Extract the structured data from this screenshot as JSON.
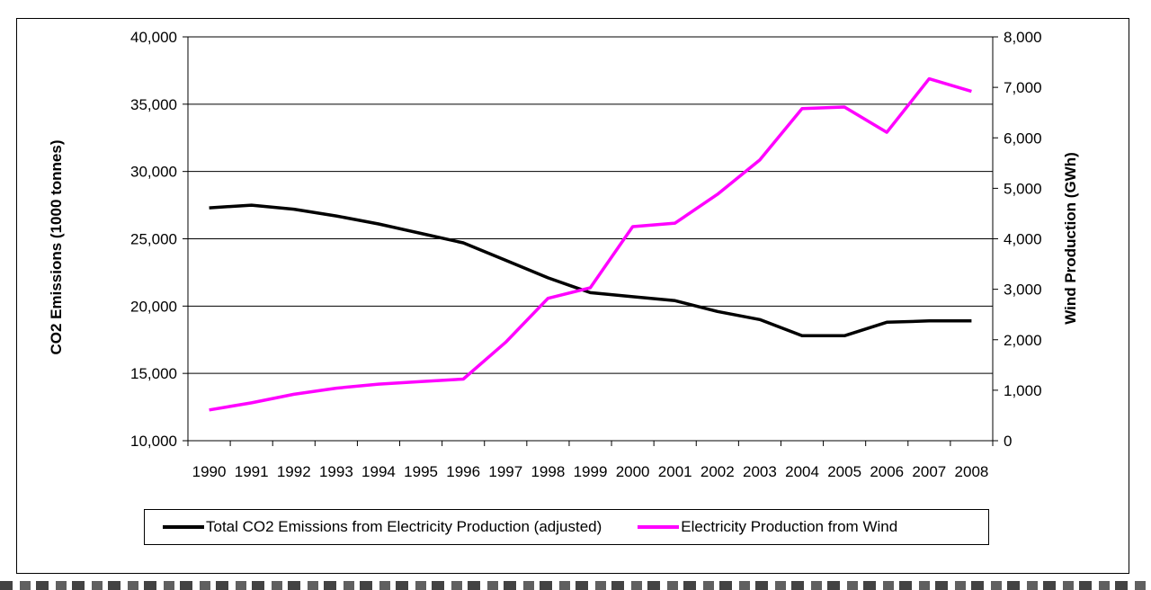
{
  "chart_data": {
    "type": "line",
    "x": [
      "1990",
      "1991",
      "1992",
      "1993",
      "1994",
      "1995",
      "1996",
      "1997",
      "1998",
      "1999",
      "2000",
      "2001",
      "2002",
      "2003",
      "2004",
      "2005",
      "2006",
      "2007",
      "2008"
    ],
    "series": [
      {
        "name": "Total CO2 Emissions from Electricity Production (adjusted)",
        "axis": "left",
        "color": "#000000",
        "values": [
          27300,
          27500,
          27200,
          26700,
          26100,
          25400,
          24700,
          23400,
          22100,
          21000,
          20700,
          20400,
          19600,
          19000,
          17800,
          17800,
          18800,
          18900,
          18900
        ]
      },
      {
        "name": "Electricity Production from Wind",
        "axis": "right",
        "color": "#ff00ff",
        "values": [
          610,
          750,
          920,
          1040,
          1120,
          1170,
          1220,
          1950,
          2820,
          3030,
          4240,
          4310,
          4880,
          5560,
          6580,
          6610,
          6110,
          7170,
          6920
        ]
      }
    ],
    "ylabel": "CO2 Emissions (1000 tonnes)",
    "y2label": "Wind Production (GWh)",
    "ylim": [
      10000,
      40000
    ],
    "y2lim": [
      0,
      8000
    ],
    "yticks": [
      "10,000",
      "15,000",
      "20,000",
      "25,000",
      "30,000",
      "35,000",
      "40,000"
    ],
    "y2ticks": [
      "0",
      "1,000",
      "2,000",
      "3,000",
      "4,000",
      "5,000",
      "6,000",
      "7,000",
      "8,000"
    ],
    "grid": "horizontal",
    "legend_position": "bottom"
  }
}
